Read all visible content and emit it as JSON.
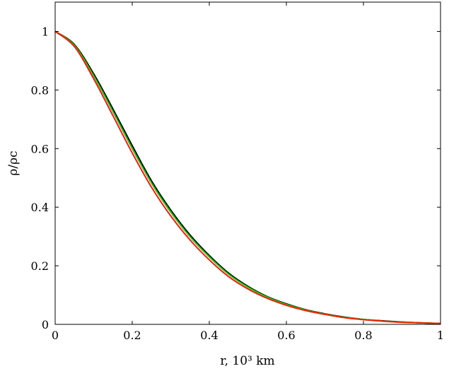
{
  "chart_data": {
    "type": "line",
    "title": "",
    "xlabel": "r, 10³ km",
    "ylabel": "ρ/ρc",
    "xlim": [
      0,
      1
    ],
    "ylim": [
      0,
      1.1
    ],
    "grid": false,
    "x_ticks": [
      {
        "value": 0,
        "label": "0"
      },
      {
        "value": 0.2,
        "label": "0.2"
      },
      {
        "value": 0.4,
        "label": "0.4"
      },
      {
        "value": 0.6,
        "label": "0.6"
      },
      {
        "value": 0.8,
        "label": "0.8"
      },
      {
        "value": 1,
        "label": "1"
      }
    ],
    "y_ticks": [
      {
        "value": 0,
        "label": "0"
      },
      {
        "value": 0.2,
        "label": "0.2"
      },
      {
        "value": 0.4,
        "label": "0.4"
      },
      {
        "value": 0.6,
        "label": "0.6"
      },
      {
        "value": 0.8,
        "label": "0.8"
      },
      {
        "value": 1,
        "label": "1"
      }
    ],
    "series": [
      {
        "color": "#000000",
        "x": [
          0,
          0.05,
          0.1,
          0.15,
          0.2,
          0.25,
          0.3,
          0.35,
          0.4,
          0.45,
          0.5,
          0.55,
          0.6,
          0.65,
          0.7,
          0.75,
          0.8,
          0.85,
          0.9,
          0.95,
          1.0
        ],
        "y": [
          1.0,
          0.955,
          0.855,
          0.735,
          0.61,
          0.49,
          0.39,
          0.305,
          0.235,
          0.175,
          0.13,
          0.095,
          0.07,
          0.05,
          0.036,
          0.025,
          0.017,
          0.012,
          0.008,
          0.005,
          0.003
        ]
      },
      {
        "color": "#22cc22",
        "x": [
          0,
          0.05,
          0.1,
          0.15,
          0.2,
          0.25,
          0.3,
          0.35,
          0.4,
          0.45,
          0.5,
          0.55,
          0.6,
          0.65,
          0.7,
          0.75,
          0.8,
          0.85,
          0.9,
          0.95,
          1.0
        ],
        "y": [
          1.0,
          0.952,
          0.848,
          0.726,
          0.6,
          0.482,
          0.383,
          0.299,
          0.23,
          0.171,
          0.127,
          0.093,
          0.068,
          0.049,
          0.035,
          0.024,
          0.017,
          0.011,
          0.008,
          0.005,
          0.003
        ]
      },
      {
        "color": "#ee2200",
        "x": [
          0,
          0.05,
          0.1,
          0.15,
          0.2,
          0.25,
          0.3,
          0.35,
          0.4,
          0.45,
          0.5,
          0.55,
          0.6,
          0.65,
          0.7,
          0.75,
          0.8,
          0.85,
          0.9,
          0.95,
          1.0
        ],
        "y": [
          1.0,
          0.948,
          0.838,
          0.712,
          0.585,
          0.468,
          0.37,
          0.288,
          0.22,
          0.163,
          0.121,
          0.089,
          0.065,
          0.047,
          0.034,
          0.023,
          0.016,
          0.011,
          0.007,
          0.005,
          0.003
        ]
      }
    ]
  }
}
